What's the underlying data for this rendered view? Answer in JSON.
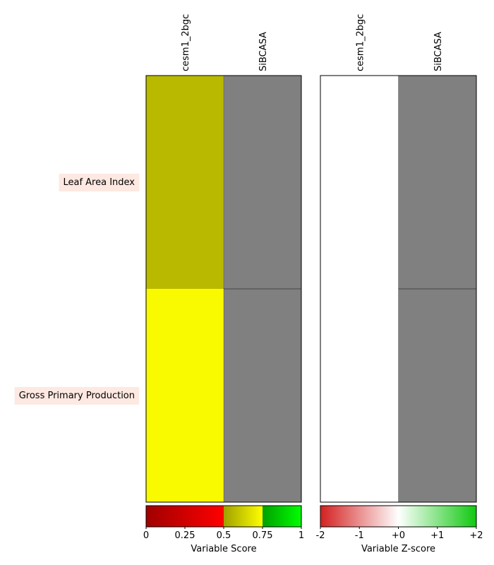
{
  "chart_data": [
    {
      "type": "heatmap",
      "rows": [
        "Leaf Area Index",
        "Gross Primary Production"
      ],
      "columns": [
        "cesm1_2bgc",
        "SiBCASA"
      ],
      "cells": [
        [
          {
            "value": 0.62,
            "color": "#b9b900"
          },
          {
            "value": null,
            "color": "#808080"
          }
        ],
        [
          {
            "value": 0.72,
            "color": "#f9f900"
          },
          {
            "value": null,
            "color": "#808080"
          }
        ]
      ],
      "colorbar": {
        "label": "Variable Score",
        "ticks": [
          "0",
          "0.25",
          "0.5",
          "0.75",
          "1"
        ],
        "range": [
          0,
          1
        ],
        "stops": [
          {
            "from": 0.0,
            "to": 0.5,
            "c0": "#a00000",
            "c1": "#ff0000"
          },
          {
            "from": 0.5,
            "to": 0.75,
            "c0": "#a0a000",
            "c1": "#ffff00"
          },
          {
            "from": 0.75,
            "to": 1.0,
            "c0": "#00a000",
            "c1": "#00ff00"
          }
        ]
      }
    },
    {
      "type": "heatmap",
      "rows": [
        "Leaf Area Index",
        "Gross Primary Production"
      ],
      "columns": [
        "cesm1_2bgc",
        "SiBCASA"
      ],
      "cells": [
        [
          {
            "value": 0,
            "color": "#ffffff"
          },
          {
            "value": null,
            "color": "#808080"
          }
        ],
        [
          {
            "value": 0,
            "color": "#ffffff"
          },
          {
            "value": null,
            "color": "#808080"
          }
        ]
      ],
      "colorbar": {
        "label": "Variable Z-score",
        "ticks": [
          "-2",
          "-1",
          "+0",
          "+1",
          "+2"
        ],
        "range": [
          -2,
          2
        ],
        "stops": [
          {
            "from": 0.0,
            "to": 0.5,
            "c0": "#d42020",
            "c1": "#ffffff"
          },
          {
            "from": 0.5,
            "to": 1.0,
            "c0": "#ffffff",
            "c1": "#10c810"
          }
        ]
      }
    }
  ],
  "colors": {
    "row_label_background": "#fde9e2",
    "missing": "#808080"
  }
}
